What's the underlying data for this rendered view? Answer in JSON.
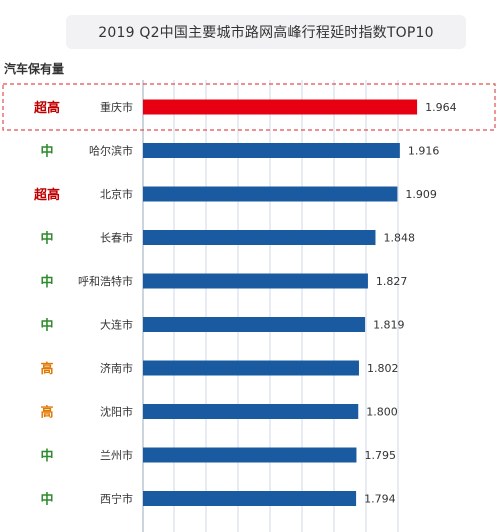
{
  "title": "2019 Q2中国主要城市路网高峰行程延时指数TOP10",
  "ownership_header": "汽车保有量",
  "colors": {
    "highlight_bar": "#e60012",
    "bar": "#1a5aa0",
    "level_super_high": "#c00000",
    "level_high": "#e07800",
    "level_medium": "#2e8b2e",
    "grid": "#cfd8e6",
    "highlight_border": "#e05050"
  },
  "chart_data": {
    "type": "bar",
    "orientation": "horizontal",
    "title": "2019 Q2中国主要城市路网高峰行程延时指数TOP10",
    "categories": [
      "重庆市",
      "哈尔滨市",
      "北京市",
      "长春市",
      "呼和浩特市",
      "大连市",
      "济南市",
      "沈阳市",
      "兰州市",
      "西宁市"
    ],
    "values": [
      1.964,
      1.916,
      1.909,
      1.848,
      1.827,
      1.819,
      1.802,
      1.8,
      1.795,
      1.794
    ],
    "value_labels": [
      "1.964",
      "1.916",
      "1.909",
      "1.848",
      "1.827",
      "1.819",
      "1.802",
      "1.800",
      "1.795",
      "1.794"
    ],
    "ownership_levels": [
      "超高",
      "中",
      "超高",
      "中",
      "中",
      "中",
      "高",
      "高",
      "中",
      "中"
    ],
    "highlighted_category": "重庆市",
    "xlim": [
      1.2,
      2.0
    ],
    "grid": true
  }
}
